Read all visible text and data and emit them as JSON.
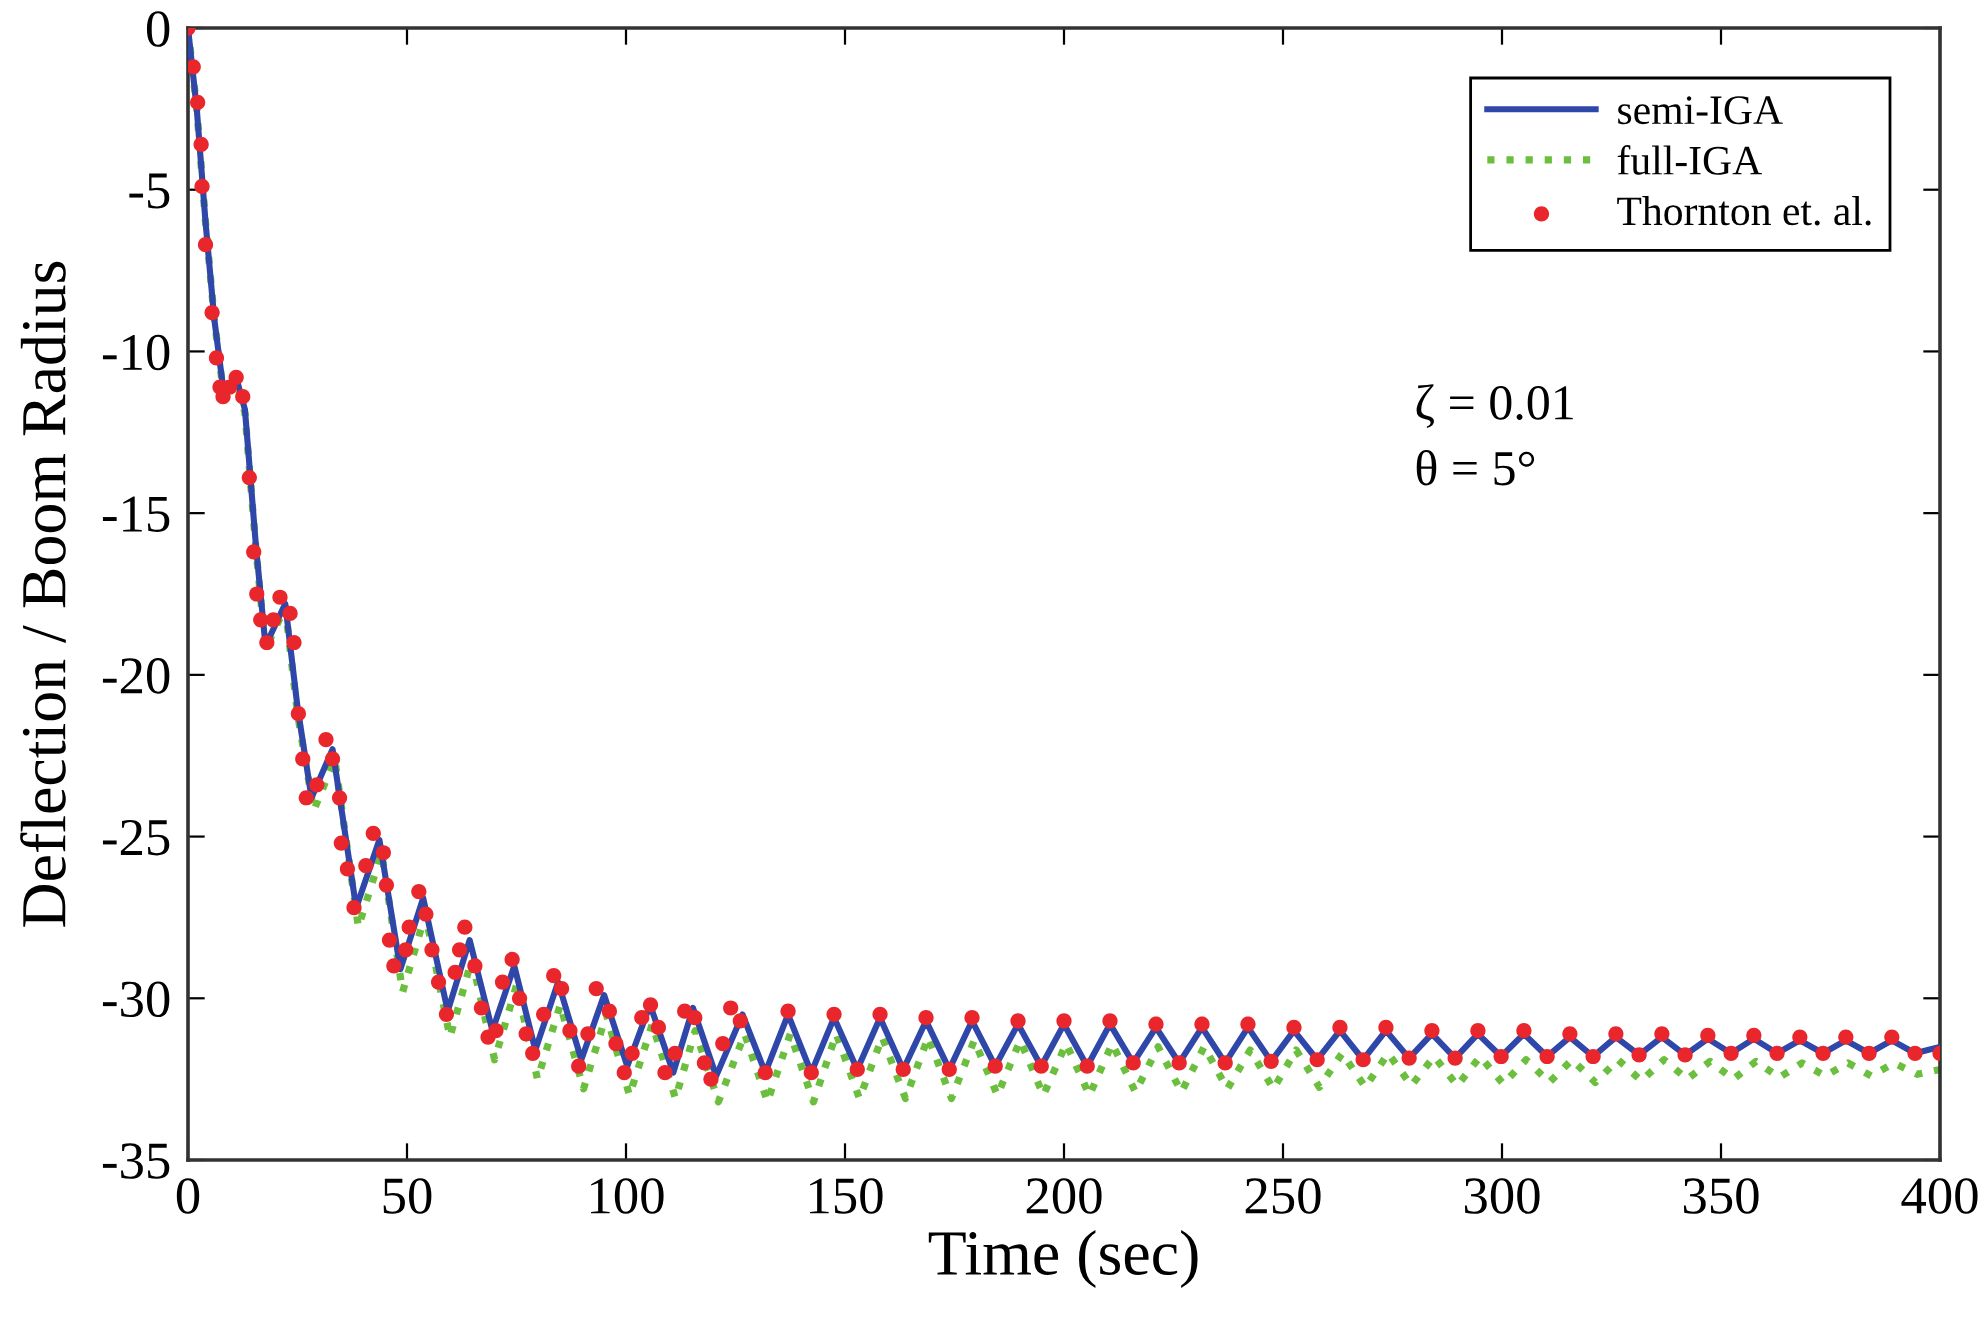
{
  "chart_data": {
    "type": "line",
    "xlabel": "Time (sec)",
    "ylabel": "Deflection / Boom Radius",
    "xlim": [
      0,
      400
    ],
    "xticks": [
      0,
      50,
      100,
      150,
      200,
      250,
      300,
      350,
      400
    ],
    "ylim": [
      -35,
      0
    ],
    "yticks": [
      -35,
      -30,
      -25,
      -20,
      -15,
      -10,
      -5,
      0
    ],
    "grid": false,
    "legend": "top right",
    "annotations": [
      "ζ = 0.01",
      "θ = 5°"
    ],
    "series": [
      {
        "name": "semi-IGA",
        "type": "line",
        "line_style": "solid",
        "marker": "none",
        "color": "#2f47a8",
        "x": [
          0,
          2,
          4,
          6,
          8,
          11.4,
          13,
          15.5,
          17.7,
          22.2,
          25,
          28.2,
          33.0,
          38.4,
          43.7,
          48.5,
          53.7,
          59.3,
          64.3,
          69.5,
          74.5,
          79.3,
          84.5,
          89.8,
          95.0,
          100.3,
          105.5,
          110.8,
          115.3,
          120.6,
          126.6,
          131.8,
          137,
          142.3,
          147.5,
          152.8,
          158,
          163.3,
          168.5,
          173.8,
          179,
          184.3,
          189.5,
          194.8,
          200,
          205.3,
          210.5,
          215.8,
          221,
          226.3,
          231.5,
          236.8,
          242,
          247.3,
          252.5,
          257.8,
          263,
          268.3,
          273.5,
          278.8,
          284,
          289.3,
          294.5,
          299.8,
          305,
          310.3,
          315.5,
          320.8,
          326,
          331.3,
          336.5,
          341.8,
          347,
          352.3,
          357.5,
          362.8,
          368,
          373.3,
          378.5,
          383.8,
          389,
          394.3,
          400
        ],
        "values": [
          0,
          -2.5,
          -6,
          -9,
          -11.1,
          -11.0,
          -11.8,
          -16,
          -19.1,
          -17.8,
          -21,
          -23.8,
          -22.3,
          -27.2,
          -25.1,
          -29.1,
          -26.9,
          -30.4,
          -28.2,
          -31.0,
          -29.0,
          -31.6,
          -29.5,
          -31.9,
          -29.9,
          -32.1,
          -30.2,
          -32.3,
          -30.3,
          -32.4,
          -30.5,
          -32.3,
          -30.5,
          -32.3,
          -30.6,
          -32.2,
          -30.6,
          -32.2,
          -30.7,
          -32.2,
          -30.7,
          -32.1,
          -30.8,
          -32.1,
          -30.8,
          -32.1,
          -30.8,
          -32.0,
          -30.9,
          -32.0,
          -30.9,
          -32.0,
          -30.9,
          -31.95,
          -31.0,
          -31.9,
          -31.0,
          -31.9,
          -31.0,
          -31.85,
          -31.1,
          -31.85,
          -31.1,
          -31.8,
          -31.1,
          -31.8,
          -31.2,
          -31.8,
          -31.2,
          -31.75,
          -31.2,
          -31.75,
          -31.25,
          -31.7,
          -31.25,
          -31.7,
          -31.3,
          -31.7,
          -31.3,
          -31.7,
          -31.3,
          -31.7,
          -31.5
        ]
      },
      {
        "name": "full-IGA",
        "type": "line",
        "line_style": "dotted",
        "marker": "none",
        "color": "#6cbf3e",
        "x": [
          0,
          2,
          4,
          6,
          8,
          11.4,
          13,
          15.5,
          17.7,
          22.2,
          25,
          28.7,
          33.5,
          38.9,
          44.2,
          49.0,
          54.2,
          59.8,
          64.8,
          70.0,
          75.0,
          79.8,
          85.0,
          90.3,
          95.5,
          100.8,
          106.0,
          111.3,
          115.8,
          121.1,
          127.1,
          132.3,
          137.5,
          142.8,
          148,
          153.3,
          158.5,
          163.8,
          169,
          174.3,
          179.5,
          184.8,
          190,
          195.3,
          200.5,
          205.8,
          211,
          216.3,
          221.5,
          226.8,
          232,
          237.3,
          242.5,
          247.8,
          253,
          258.3,
          263.5,
          268.8,
          274,
          279.3,
          284.5,
          289.8,
          295,
          300.3,
          305.5,
          310.8,
          316,
          321.3,
          326.5,
          331.8,
          337,
          342.3,
          347.5,
          352.8,
          358,
          363.3,
          368.5,
          373.8,
          379,
          384.3,
          389.5,
          394.8,
          400
        ],
        "values": [
          0,
          -2.5,
          -6,
          -9,
          -11.2,
          -11.1,
          -11.9,
          -16.1,
          -19.2,
          -17.9,
          -21.2,
          -24.2,
          -22.6,
          -27.8,
          -25.5,
          -29.8,
          -27.4,
          -31.2,
          -28.8,
          -31.9,
          -29.6,
          -32.5,
          -30.2,
          -32.8,
          -30.5,
          -33.0,
          -30.8,
          -33.1,
          -31.0,
          -33.2,
          -31.1,
          -33.2,
          -31.1,
          -33.2,
          -31.1,
          -33.1,
          -31.2,
          -33.1,
          -31.2,
          -33.1,
          -31.3,
          -33.0,
          -31.3,
          -33.0,
          -31.4,
          -33.0,
          -31.4,
          -32.9,
          -31.5,
          -32.9,
          -31.5,
          -32.8,
          -31.6,
          -32.8,
          -31.6,
          -32.75,
          -31.7,
          -32.75,
          -31.7,
          -32.7,
          -31.8,
          -32.7,
          -31.8,
          -32.65,
          -31.9,
          -32.6,
          -31.9,
          -32.6,
          -31.9,
          -32.55,
          -31.9,
          -32.5,
          -31.95,
          -32.5,
          -31.95,
          -32.45,
          -32.0,
          -32.4,
          -32.0,
          -32.4,
          -32.0,
          -32.35,
          -32.2
        ]
      },
      {
        "name": "Thornton et. al.",
        "type": "scatter",
        "marker": "circle",
        "color": "#e8262b",
        "x": [
          0,
          1.2,
          2.2,
          3.0,
          3.2,
          4.0,
          5.5,
          6.5,
          7.3,
          8.0,
          9.5,
          11,
          12.5,
          14,
          15,
          15.7,
          16.6,
          18,
          19.5,
          21,
          23.3,
          24.2,
          25.2,
          26.2,
          27.0,
          29.4,
          31.5,
          33,
          34.6,
          35,
          36.4,
          37.9,
          40.6,
          42.3,
          44.6,
          45.3,
          46,
          47,
          49.7,
          50.5,
          52.7,
          54.3,
          55.7,
          57.2,
          59,
          61,
          62,
          63.2,
          65.5,
          67,
          68.5,
          70.3,
          71.8,
          74,
          75.7,
          77.2,
          78.7,
          81.2,
          83.5,
          85.3,
          87.2,
          89.2,
          91.3,
          93.2,
          96.2,
          97.7,
          99.6,
          101.4,
          103.6,
          105.6,
          107.4,
          108.9,
          111.2,
          113.4,
          115.7,
          117.9,
          119.4,
          122.1,
          123.9,
          126.1,
          131.8,
          137,
          142.3,
          147.5,
          152.8,
          158,
          163.3,
          168.5,
          173.8,
          179,
          184.3,
          189.5,
          194.8,
          200,
          205.3,
          210.5,
          215.8,
          221,
          226.3,
          231.5,
          236.8,
          242,
          247.3,
          252.5,
          257.8,
          263,
          268.3,
          273.5,
          278.8,
          284,
          289.3,
          294.5,
          299.8,
          305,
          310.3,
          315.5,
          320.8,
          326,
          331.3,
          336.5,
          341.8,
          347,
          352.3,
          357.5,
          362.8,
          368,
          373.3,
          378.5,
          383.8,
          389,
          394.3,
          400
        ],
        "values": [
          0,
          -1.2,
          -2.3,
          -3.6,
          -4.9,
          -6.7,
          -8.8,
          -10.2,
          -11.1,
          -11.4,
          -11.1,
          -10.8,
          -11.4,
          -13.9,
          -16.2,
          -17.5,
          -18.3,
          -19.0,
          -18.3,
          -17.6,
          -18.1,
          -19.0,
          -21.2,
          -22.6,
          -23.8,
          -23.4,
          -22.0,
          -22.6,
          -23.8,
          -25.2,
          -26.0,
          -27.2,
          -25.9,
          -24.9,
          -25.5,
          -26.5,
          -28.2,
          -29.0,
          -28.5,
          -27.8,
          -26.7,
          -27.4,
          -28.5,
          -29.5,
          -30.5,
          -29.2,
          -28.5,
          -27.8,
          -29.0,
          -30.3,
          -31.2,
          -31.0,
          -29.5,
          -28.8,
          -30.0,
          -31.1,
          -31.7,
          -30.5,
          -29.3,
          -29.7,
          -31.0,
          -32.1,
          -31.1,
          -29.7,
          -30.4,
          -31.4,
          -32.3,
          -31.7,
          -30.6,
          -30.2,
          -30.9,
          -32.3,
          -31.7,
          -30.4,
          -30.6,
          -32.0,
          -32.5,
          -31.4,
          -30.3,
          -30.7,
          -32.3,
          -30.4,
          -32.3,
          -30.5,
          -32.2,
          -30.5,
          -32.2,
          -30.6,
          -32.2,
          -30.6,
          -32.1,
          -30.7,
          -32.1,
          -30.7,
          -32.1,
          -30.7,
          -32.0,
          -30.8,
          -32.0,
          -30.8,
          -32.0,
          -30.8,
          -31.95,
          -30.9,
          -31.9,
          -30.9,
          -31.9,
          -30.9,
          -31.85,
          -31.0,
          -31.85,
          -31.0,
          -31.8,
          -31.0,
          -31.8,
          -31.1,
          -31.8,
          -31.1,
          -31.75,
          -31.1,
          -31.75,
          -31.15,
          -31.7,
          -31.15,
          -31.7,
          -31.2,
          -31.7,
          -31.2,
          -31.7,
          -31.2,
          -31.7,
          -31.7
        ]
      }
    ]
  }
}
